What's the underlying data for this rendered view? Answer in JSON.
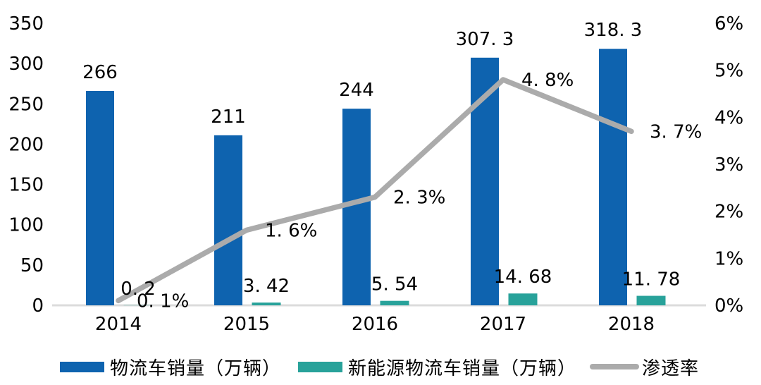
{
  "chart_data": {
    "type": "bar",
    "subtype": "combo bar+line, dual axis",
    "title": "",
    "categories": [
      "2014",
      "2015",
      "2016",
      "2017",
      "2018"
    ],
    "series": [
      {
        "name": "物流车销量（万辆）",
        "type": "bar",
        "axis": "left",
        "color": "#0E63AF",
        "values": [
          266,
          211,
          244,
          307.3,
          318.3
        ],
        "data_labels": [
          "266",
          "211",
          "244",
          "307. 3",
          "318. 3"
        ]
      },
      {
        "name": "新能源物流车销量（万辆）",
        "type": "bar",
        "axis": "left",
        "color": "#28A29A",
        "values": [
          0.2,
          3.42,
          5.54,
          14.68,
          11.78
        ],
        "data_labels": [
          "0. 2",
          "3. 42",
          "5. 54",
          "14. 68",
          "11. 78"
        ]
      },
      {
        "name": "渗透率",
        "type": "line",
        "axis": "right",
        "color": "#ABABAB",
        "values": [
          0.1,
          1.6,
          2.3,
          4.8,
          3.7
        ],
        "data_labels": [
          "0. 1%",
          "1. 6%",
          "2. 3%",
          "4. 8%",
          "3. 7%"
        ]
      }
    ],
    "left_axis": {
      "min": 0,
      "max": 350,
      "step": 50,
      "tick_labels": [
        "0",
        "50",
        "100",
        "150",
        "200",
        "250",
        "300",
        "350"
      ]
    },
    "right_axis": {
      "min": 0,
      "max": 6,
      "step": 1,
      "tick_labels": [
        "0%",
        "1%",
        "2%",
        "3%",
        "4%",
        "5%",
        "6%"
      ]
    },
    "grid": false,
    "legend_position": "bottom",
    "baseline_color": "#DCDCDC",
    "text_color": "#000000"
  }
}
